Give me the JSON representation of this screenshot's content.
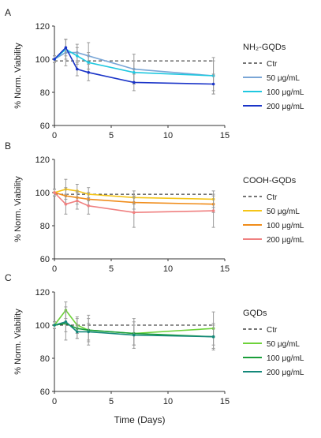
{
  "chart_data": [
    {
      "type": "line",
      "panel_label": "A",
      "legend_title": "NH₂-GQDs",
      "ylabel": "% Norm. Viability",
      "xlabel": "",
      "xlim": [
        0,
        15
      ],
      "ylim": [
        60,
        120
      ],
      "xticks": [
        0,
        5,
        10,
        15
      ],
      "yticks": [
        60,
        80,
        100,
        120
      ],
      "grid": false,
      "legend_position": "right",
      "series": [
        {
          "name": "Ctr",
          "color": "#222222",
          "style": "dashed",
          "x": [
            0,
            14
          ],
          "y": [
            99,
            99
          ],
          "err": []
        },
        {
          "name": "50 μg/mL",
          "color": "#7aa6d6",
          "style": "solid",
          "x": [
            0,
            1,
            2,
            3,
            7,
            14
          ],
          "y": [
            100,
            104,
            104,
            102,
            94,
            90
          ],
          "err": [
            2,
            8,
            5,
            8,
            9,
            11
          ]
        },
        {
          "name": "100 μg/mL",
          "color": "#20c8e0",
          "style": "solid",
          "x": [
            0,
            1,
            2,
            3,
            7,
            14
          ],
          "y": [
            100,
            106,
            102,
            98,
            92,
            90
          ],
          "err": [
            2,
            6,
            5,
            6,
            7,
            9
          ]
        },
        {
          "name": "200 μg/mL",
          "color": "#1a34c8",
          "style": "solid",
          "x": [
            0,
            1,
            2,
            3,
            7,
            14
          ],
          "y": [
            100,
            107,
            94,
            92,
            86,
            85
          ],
          "err": [
            2,
            5,
            4,
            5,
            5,
            6
          ]
        }
      ]
    },
    {
      "type": "line",
      "panel_label": "B",
      "legend_title": "COOH-GQDs",
      "ylabel": "% Norm. Viability",
      "xlabel": "",
      "xlim": [
        0,
        15
      ],
      "ylim": [
        60,
        120
      ],
      "xticks": [
        0,
        5,
        10,
        15
      ],
      "yticks": [
        60,
        80,
        100,
        120
      ],
      "grid": false,
      "legend_position": "right",
      "series": [
        {
          "name": "Ctr",
          "color": "#222222",
          "style": "dashed",
          "x": [
            0,
            14
          ],
          "y": [
            99,
            99
          ],
          "err": []
        },
        {
          "name": "50 μg/mL",
          "color": "#f5c518",
          "style": "solid",
          "x": [
            0,
            1,
            2,
            3,
            7,
            14
          ],
          "y": [
            100,
            102,
            101,
            99,
            97,
            96
          ],
          "err": [
            2,
            6,
            4,
            4,
            4,
            5
          ]
        },
        {
          "name": "100 μg/mL",
          "color": "#f08c1a",
          "style": "solid",
          "x": [
            0,
            1,
            2,
            3,
            7,
            14
          ],
          "y": [
            100,
            98,
            97,
            96,
            94,
            93
          ],
          "err": [
            2,
            5,
            4,
            4,
            4,
            5
          ]
        },
        {
          "name": "200 μg/mL",
          "color": "#ef8080",
          "style": "solid",
          "x": [
            0,
            1,
            2,
            3,
            7,
            14
          ],
          "y": [
            100,
            93,
            95,
            92,
            88,
            89
          ],
          "err": [
            2,
            6,
            5,
            5,
            9,
            10
          ]
        }
      ]
    },
    {
      "type": "line",
      "panel_label": "C",
      "legend_title": "GQDs",
      "ylabel": "% Norm. Viability",
      "xlabel": "Time (Days)",
      "xlim": [
        0,
        15
      ],
      "ylim": [
        60,
        120
      ],
      "xticks": [
        0,
        5,
        10,
        15
      ],
      "yticks": [
        60,
        80,
        100,
        120
      ],
      "grid": false,
      "legend_position": "right",
      "series": [
        {
          "name": "Ctr",
          "color": "#222222",
          "style": "dashed",
          "x": [
            0,
            14
          ],
          "y": [
            100,
            100
          ],
          "err": []
        },
        {
          "name": "50 μg/mL",
          "color": "#6ed23a",
          "style": "solid",
          "x": [
            0,
            1,
            2,
            3,
            7,
            14
          ],
          "y": [
            100,
            109,
            100,
            97,
            95,
            98
          ],
          "err": [
            2,
            5,
            5,
            9,
            9,
            10
          ]
        },
        {
          "name": "100 μg/mL",
          "color": "#1a9e3a",
          "style": "solid",
          "x": [
            0,
            1,
            2,
            3,
            7,
            14
          ],
          "y": [
            100,
            101,
            98,
            97,
            95,
            93
          ],
          "err": [
            2,
            10,
            6,
            7,
            7,
            8
          ]
        },
        {
          "name": "200 μg/mL",
          "color": "#14887a",
          "style": "solid",
          "x": [
            0,
            1,
            2,
            3,
            7,
            14
          ],
          "y": [
            100,
            102,
            96,
            96,
            94,
            93
          ],
          "err": [
            2,
            6,
            4,
            5,
            6,
            7
          ]
        }
      ]
    }
  ]
}
